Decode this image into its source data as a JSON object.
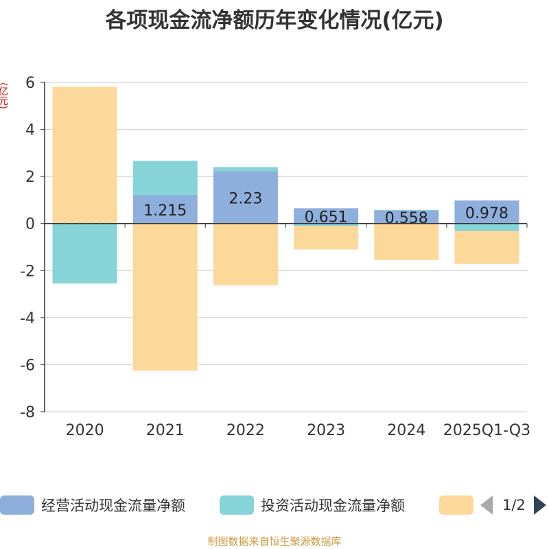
{
  "chart_data": {
    "type": "bar",
    "stacked": true,
    "title": "各项现金流净额历年变化情况(亿元)",
    "ylabel": "(亿元)",
    "xlabel": "",
    "categories": [
      "2020",
      "2021",
      "2022",
      "2023",
      "2024",
      "2025Q1-Q3"
    ],
    "ylim": [
      -8,
      6
    ],
    "yticks": [
      6,
      4,
      2,
      0,
      -2,
      -4,
      -6,
      -8
    ],
    "grid": true,
    "series": [
      {
        "name": "经营活动现金流量净额",
        "color": "#8eaedb",
        "values": [
          0.01,
          1.215,
          2.23,
          0.651,
          0.558,
          0.978
        ],
        "labels": [
          "",
          "1.215",
          "2.23",
          "0.651",
          "0.558",
          "0.978"
        ]
      },
      {
        "name": "投资活动现金流量净额",
        "color": "#86d4d8",
        "values": [
          -2.55,
          1.45,
          0.17,
          -0.1,
          0.02,
          -0.32
        ]
      },
      {
        "name": "",
        "color": "#fdd89b",
        "values": [
          5.8,
          -6.25,
          -2.62,
          -1.0,
          -1.55,
          -1.4
        ]
      }
    ],
    "legend": {
      "position": "bottom",
      "page": "1/2"
    },
    "source": "制图数据来自恒生聚源数据库"
  }
}
